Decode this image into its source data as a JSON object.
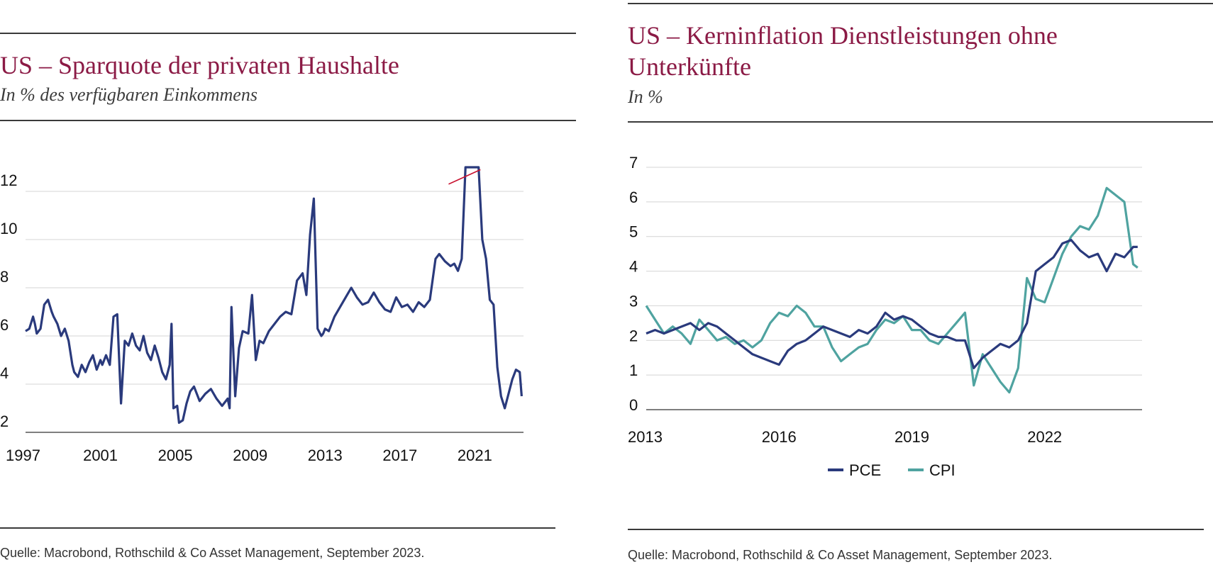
{
  "left": {
    "title": "US – Sparquote der privaten Haushalte",
    "subtitle": "In % des verfügbaren Einkommens",
    "source": "Quelle: Macrobond, Rothschild & Co Asset Management, September 2023.",
    "colors": {
      "line": "#2a3a7c",
      "title": "#8b1a45",
      "marker": "#c8102e"
    }
  },
  "right": {
    "title_line1": "US – Kerninflation Dienstleistungen ohne",
    "title_line2": "Unterkünfte",
    "subtitle": "In %",
    "source": "Quelle: Macrobond, Rothschild & Co Asset Management, September 2023.",
    "colors": {
      "PCE": "#2a3a7c",
      "CPI": "#4fa3a0"
    }
  },
  "chart_data": [
    {
      "type": "line",
      "title": "US – Sparquote der privaten Haushalte",
      "subtitle": "In % des verfügbaren Einkommens",
      "xlabel": "",
      "ylabel": "",
      "xlim": [
        1997,
        2023.6
      ],
      "ylim": [
        2,
        13
      ],
      "yticks": [
        2,
        4,
        6,
        8,
        10,
        12
      ],
      "xticks": [
        1997,
        2001,
        2005,
        2009,
        2013,
        2017,
        2021
      ],
      "grid": true,
      "legend": "none",
      "axis_break": "y-axis clipped above 13 (COVID spike), marked with red line",
      "series": [
        {
          "x": [
            1997.0,
            1997.2,
            1997.4,
            1997.5,
            1997.6,
            1997.8,
            1998.0,
            1998.2,
            1998.4,
            1998.5,
            1998.7,
            1998.9,
            1999.1,
            1999.3,
            1999.5,
            1999.6,
            1999.8,
            2000.0,
            2000.2,
            2000.4,
            2000.6,
            2000.8,
            2001.0,
            2001.1,
            2001.3,
            2001.5,
            2001.7,
            2001.9,
            2002.1,
            2002.3,
            2002.5,
            2002.7,
            2002.9,
            2003.1,
            2003.3,
            2003.5,
            2003.7,
            2003.9,
            2004.1,
            2004.3,
            2004.5,
            2004.7,
            2004.8,
            2004.9,
            2005.1,
            2005.2,
            2005.4,
            2005.6,
            2005.8,
            2006.0,
            2006.3,
            2006.6,
            2006.9,
            2007.2,
            2007.5,
            2007.8,
            2007.9,
            2008.0,
            2008.2,
            2008.4,
            2008.6,
            2008.9,
            2009.1,
            2009.3,
            2009.5,
            2009.7,
            2010.0,
            2010.3,
            2010.6,
            2010.9,
            2011.2,
            2011.5,
            2011.8,
            2012.0,
            2012.2,
            2012.4,
            2012.6,
            2012.8,
            2012.9,
            2013.0,
            2013.2,
            2013.5,
            2013.8,
            2014.1,
            2014.4,
            2014.7,
            2015.0,
            2015.3,
            2015.6,
            2015.9,
            2016.2,
            2016.5,
            2016.8,
            2017.1,
            2017.4,
            2017.7,
            2018.0,
            2018.3,
            2018.6,
            2018.9,
            2019.1,
            2019.4,
            2019.7,
            2019.9,
            2020.1,
            2020.3,
            2020.5,
            2020.7,
            2020.9,
            2021.0,
            2021.2,
            2021.4,
            2021.6,
            2021.8,
            2022.0,
            2022.2,
            2022.4,
            2022.6,
            2022.8,
            2023.0,
            2023.2,
            2023.4,
            2023.5
          ],
          "values": [
            6.2,
            6.3,
            6.8,
            6.5,
            6.1,
            6.3,
            7.3,
            7.5,
            7.0,
            6.8,
            6.5,
            6.0,
            6.3,
            5.8,
            4.8,
            4.5,
            4.3,
            4.8,
            4.5,
            4.9,
            5.2,
            4.6,
            5.0,
            4.8,
            5.2,
            4.8,
            6.8,
            6.9,
            3.2,
            5.8,
            5.6,
            6.1,
            5.6,
            5.4,
            6.0,
            5.3,
            5.0,
            5.6,
            5.1,
            4.5,
            4.2,
            4.8,
            6.5,
            3.0,
            3.1,
            2.4,
            2.5,
            3.2,
            3.7,
            3.9,
            3.3,
            3.6,
            3.8,
            3.4,
            3.1,
            3.4,
            3.0,
            7.2,
            3.5,
            5.5,
            6.2,
            6.1,
            7.7,
            5.0,
            5.8,
            5.7,
            6.2,
            6.5,
            6.8,
            7.0,
            6.9,
            8.3,
            8.6,
            7.7,
            10.2,
            11.7,
            6.3,
            6.0,
            6.1,
            6.3,
            6.2,
            6.8,
            7.2,
            7.6,
            8.0,
            7.6,
            7.3,
            7.4,
            7.8,
            7.4,
            7.1,
            7.0,
            7.6,
            7.2,
            7.3,
            7.0,
            7.4,
            7.2,
            7.5,
            9.2,
            9.4,
            9.1,
            8.9,
            9.0,
            8.7,
            9.2,
            13,
            13,
            13,
            13,
            13,
            10.0,
            9.2,
            7.5,
            7.3,
            4.7,
            3.5,
            3.0,
            3.6,
            4.2,
            4.6,
            4.5,
            3.5
          ]
        }
      ]
    },
    {
      "type": "line",
      "title": "US – Kerninflation Dienstleistungen ohne Unterkünfte",
      "subtitle": "In %",
      "xlabel": "",
      "ylabel": "",
      "xlim": [
        2013,
        2024.2
      ],
      "ylim": [
        0,
        7
      ],
      "yticks": [
        0,
        1,
        2,
        3,
        4,
        5,
        6,
        7
      ],
      "xticks": [
        2013,
        2016,
        2019,
        2022
      ],
      "grid": true,
      "legend": "bottom",
      "series": [
        {
          "name": "PCE",
          "x": [
            2013.0,
            2013.2,
            2013.4,
            2013.6,
            2013.8,
            2014.0,
            2014.2,
            2014.4,
            2014.6,
            2014.8,
            2015.0,
            2015.2,
            2015.4,
            2015.6,
            2015.8,
            2016.0,
            2016.2,
            2016.4,
            2016.6,
            2016.8,
            2017.0,
            2017.2,
            2017.4,
            2017.6,
            2017.8,
            2018.0,
            2018.2,
            2018.4,
            2018.6,
            2018.8,
            2019.0,
            2019.2,
            2019.4,
            2019.6,
            2019.8,
            2020.0,
            2020.2,
            2020.4,
            2020.6,
            2020.8,
            2021.0,
            2021.2,
            2021.4,
            2021.6,
            2021.8,
            2022.0,
            2022.2,
            2022.4,
            2022.6,
            2022.8,
            2023.0,
            2023.2,
            2023.4,
            2023.6,
            2023.8,
            2024.0,
            2024.1
          ],
          "values": [
            2.2,
            2.3,
            2.2,
            2.3,
            2.4,
            2.5,
            2.3,
            2.5,
            2.4,
            2.2,
            2.0,
            1.8,
            1.6,
            1.5,
            1.4,
            1.3,
            1.7,
            1.9,
            2.0,
            2.2,
            2.4,
            2.3,
            2.2,
            2.1,
            2.3,
            2.2,
            2.4,
            2.8,
            2.6,
            2.7,
            2.6,
            2.4,
            2.2,
            2.1,
            2.1,
            2.0,
            2.0,
            1.2,
            1.5,
            1.7,
            1.9,
            1.8,
            2.0,
            2.5,
            4.0,
            4.2,
            4.4,
            4.8,
            4.9,
            4.6,
            4.4,
            4.5,
            4.0,
            4.5,
            4.4,
            4.7,
            4.7
          ]
        },
        {
          "name": "CPI",
          "x": [
            2013.0,
            2013.2,
            2013.4,
            2013.6,
            2013.8,
            2014.0,
            2014.2,
            2014.4,
            2014.6,
            2014.8,
            2015.0,
            2015.2,
            2015.4,
            2015.6,
            2015.8,
            2016.0,
            2016.2,
            2016.4,
            2016.6,
            2016.8,
            2017.0,
            2017.2,
            2017.4,
            2017.6,
            2017.8,
            2018.0,
            2018.2,
            2018.4,
            2018.6,
            2018.8,
            2019.0,
            2019.2,
            2019.4,
            2019.6,
            2019.8,
            2020.0,
            2020.2,
            2020.4,
            2020.6,
            2020.8,
            2021.0,
            2021.2,
            2021.4,
            2021.6,
            2021.8,
            2022.0,
            2022.2,
            2022.4,
            2022.6,
            2022.8,
            2023.0,
            2023.2,
            2023.4,
            2023.6,
            2023.8,
            2024.0,
            2024.1
          ],
          "values": [
            3.0,
            2.6,
            2.2,
            2.4,
            2.2,
            1.9,
            2.6,
            2.3,
            2.0,
            2.1,
            1.9,
            2.0,
            1.8,
            2.0,
            2.5,
            2.8,
            2.7,
            3.0,
            2.8,
            2.4,
            2.4,
            1.8,
            1.4,
            1.6,
            1.8,
            1.9,
            2.3,
            2.6,
            2.5,
            2.7,
            2.3,
            2.3,
            2.0,
            1.9,
            2.2,
            2.5,
            2.8,
            0.7,
            1.6,
            1.2,
            0.8,
            0.5,
            1.2,
            3.8,
            3.2,
            3.1,
            3.8,
            4.5,
            5.0,
            5.3,
            5.2,
            5.6,
            6.4,
            6.2,
            6.0,
            4.2,
            4.1
          ]
        }
      ]
    }
  ]
}
